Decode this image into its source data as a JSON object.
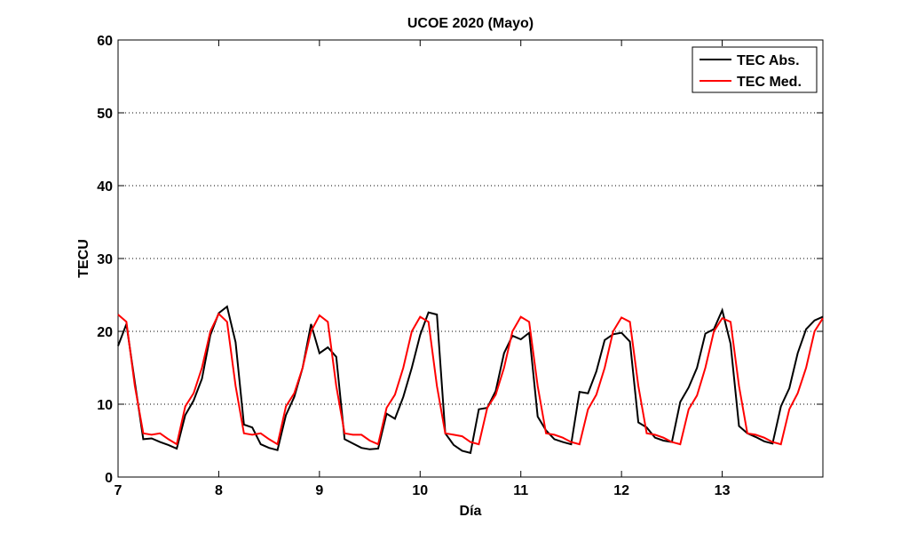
{
  "chart_data": {
    "type": "line",
    "title": "UCOE 2020 (Mayo)",
    "xlabel": "Día",
    "ylabel": "TECU",
    "xlim": [
      7,
      14
    ],
    "ylim": [
      0,
      60
    ],
    "x_ticks": [
      7,
      8,
      9,
      10,
      11,
      12,
      13
    ],
    "y_ticks": [
      0,
      10,
      20,
      30,
      40,
      50,
      60
    ],
    "grid": "horizontal dotted",
    "legend_position": "top-right",
    "series": [
      {
        "name": "TEC Abs.",
        "color": "#000000",
        "x": [
          7.0,
          7.083,
          7.167,
          7.25,
          7.333,
          7.417,
          7.5,
          7.583,
          7.667,
          7.75,
          7.833,
          7.917,
          8.0,
          8.083,
          8.167,
          8.25,
          8.333,
          8.417,
          8.5,
          8.583,
          8.667,
          8.75,
          8.833,
          8.917,
          9.0,
          9.083,
          9.167,
          9.25,
          9.333,
          9.417,
          9.5,
          9.583,
          9.667,
          9.75,
          9.833,
          9.917,
          10.0,
          10.083,
          10.167,
          10.25,
          10.333,
          10.417,
          10.5,
          10.583,
          10.667,
          10.75,
          10.833,
          10.917,
          11.0,
          11.083,
          11.167,
          11.25,
          11.333,
          11.417,
          11.5,
          11.583,
          11.667,
          11.75,
          11.833,
          11.917,
          12.0,
          12.083,
          12.167,
          12.25,
          12.333,
          12.417,
          12.5,
          12.583,
          12.667,
          12.75,
          12.833,
          12.917,
          13.0,
          13.083,
          13.167,
          13.25,
          13.333,
          13.417,
          13.5,
          13.583,
          13.667,
          13.75,
          13.833,
          13.917,
          14.0
        ],
        "values": [
          18,
          21,
          13,
          5.2,
          5.3,
          4.8,
          4.4,
          3.9,
          8.5,
          10.5,
          13.5,
          19.5,
          22.5,
          23.4,
          18.5,
          7.2,
          6.8,
          4.5,
          4.0,
          3.7,
          8.5,
          11,
          15,
          21,
          17,
          17.8,
          16.5,
          5.2,
          4.6,
          4.0,
          3.8,
          3.9,
          8.7,
          8.0,
          11.0,
          15.0,
          19.5,
          22.6,
          22.3,
          6.0,
          4.4,
          3.6,
          3.3,
          9.3,
          9.5,
          11.8,
          17.0,
          19.4,
          18.9,
          19.8,
          8.3,
          6.4,
          5.2,
          4.8,
          4.5,
          11.7,
          11.5,
          14.5,
          18.8,
          19.6,
          19.8,
          18.6,
          7.5,
          6.8,
          5.4,
          5.0,
          4.8,
          10.3,
          12.3,
          15.0,
          19.7,
          20.3,
          22.9,
          18.3,
          7.0,
          6.0,
          5.5,
          4.9,
          4.6,
          9.7,
          12.2,
          17.0,
          20.3,
          21.5,
          22
        ]
      },
      {
        "name": "TEC Med.",
        "color": "#ff0000",
        "x": [
          7.0,
          7.083,
          7.167,
          7.25,
          7.333,
          7.417,
          7.5,
          7.583,
          7.667,
          7.75,
          7.833,
          7.917,
          8.0,
          8.083,
          8.167,
          8.25,
          8.333,
          8.417,
          8.5,
          8.583,
          8.667,
          8.75,
          8.833,
          8.917,
          9.0,
          9.083,
          9.167,
          9.25,
          9.333,
          9.417,
          9.5,
          9.583,
          9.667,
          9.75,
          9.833,
          9.917,
          10.0,
          10.083,
          10.167,
          10.25,
          10.333,
          10.417,
          10.5,
          10.583,
          10.667,
          10.75,
          10.833,
          10.917,
          11.0,
          11.083,
          11.167,
          11.25,
          11.333,
          11.417,
          11.5,
          11.583,
          11.667,
          11.75,
          11.833,
          11.917,
          12.0,
          12.083,
          12.167,
          12.25,
          12.333,
          12.417,
          12.5,
          12.583,
          12.667,
          12.75,
          12.833,
          12.917,
          13.0,
          13.083,
          13.167,
          13.25,
          13.333,
          13.417,
          13.5,
          13.583,
          13.667,
          13.75,
          13.833,
          13.917,
          14.0
        ],
        "values": [
          22.3,
          21.3,
          12.5,
          6.0,
          5.8,
          6.0,
          5.2,
          4.5,
          9.7,
          11.5,
          15.0,
          20.0,
          22.4,
          21.3,
          12.5,
          6.0,
          5.8,
          6.0,
          5.2,
          4.5,
          9.7,
          11.5,
          15.0,
          20.0,
          22.2,
          21.3,
          12.5,
          6.0,
          5.8,
          5.8,
          5.0,
          4.5,
          9.5,
          11.3,
          15.0,
          20.0,
          22.0,
          21.3,
          12.5,
          6.0,
          5.8,
          5.6,
          4.8,
          4.5,
          9.5,
          11.3,
          15.0,
          20.0,
          22.0,
          21.3,
          12.5,
          6.0,
          5.8,
          5.4,
          4.8,
          4.5,
          9.3,
          11.3,
          15.0,
          20.0,
          21.9,
          21.3,
          12.5,
          6.0,
          5.8,
          5.4,
          4.8,
          4.5,
          9.3,
          11.2,
          15.0,
          20.0,
          21.8,
          21.3,
          12.5,
          6.0,
          5.8,
          5.4,
          4.8,
          4.5,
          9.3,
          11.5,
          15.0,
          20.0,
          21.8
        ]
      }
    ]
  }
}
